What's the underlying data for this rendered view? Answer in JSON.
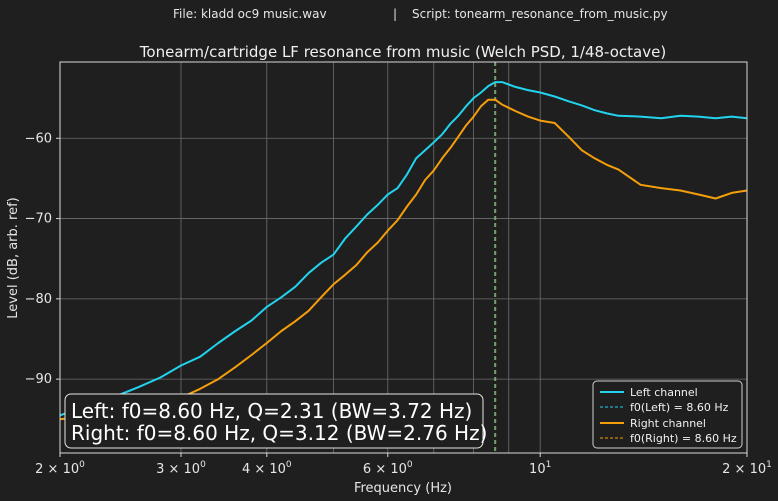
{
  "header": {
    "file_label": "File: kladd oc9 music.wav",
    "separator": "|",
    "script_label": "Script: tonearm_resonance_from_music.py"
  },
  "colors": {
    "background": "#1f1f1f",
    "plot_background": "#1f1f1f",
    "grid": "#6e6e6e",
    "left": "#22d3ee",
    "right": "#f59e0b",
    "text": "#e6e6e6"
  },
  "chart_data": {
    "type": "line",
    "title": "Tonearm/cartridge LF resonance from music (Welch PSD, 1/48-octave)",
    "xlabel": "Frequency (Hz)",
    "ylabel": "Level (dB, arb. ref)",
    "xscale": "log",
    "xlim": [
      2,
      20
    ],
    "ylim": [
      -99.2,
      -50.5
    ],
    "grid": true,
    "legend_position": "lower-right",
    "x_ticks": [
      {
        "value": 2,
        "base": "2 × 10",
        "exp": "0"
      },
      {
        "value": 3,
        "base": "3 × 10",
        "exp": "0"
      },
      {
        "value": 4,
        "base": "4 × 10",
        "exp": "0"
      },
      {
        "value": 6,
        "base": "6 × 10",
        "exp": "0"
      },
      {
        "value": 10,
        "base": "10",
        "exp": "1"
      },
      {
        "value": 20,
        "base": "2 × 10",
        "exp": "1"
      }
    ],
    "y_ticks": [
      {
        "value": -90,
        "label": "−90"
      },
      {
        "value": -80,
        "label": "−80"
      },
      {
        "value": -70,
        "label": "−70"
      },
      {
        "value": -60,
        "label": "−60"
      }
    ],
    "series": [
      {
        "name": "Left channel",
        "color": "#22d3ee",
        "x": [
          2.0,
          2.2,
          2.4,
          2.6,
          2.8,
          3.0,
          3.2,
          3.4,
          3.6,
          3.8,
          4.0,
          4.2,
          4.4,
          4.6,
          4.8,
          5.0,
          5.2,
          5.4,
          5.6,
          5.8,
          6.0,
          6.2,
          6.4,
          6.6,
          6.8,
          7.0,
          7.2,
          7.4,
          7.6,
          7.8,
          8.0,
          8.2,
          8.4,
          8.6,
          8.8,
          9.0,
          9.2,
          9.6,
          10.0,
          10.5,
          11.0,
          11.5,
          12.0,
          12.5,
          13.0,
          14.0,
          15.0,
          16.0,
          17.0,
          18.0,
          19.0,
          20.0
        ],
        "y": [
          -94.5,
          -93.3,
          -92.2,
          -91.0,
          -89.8,
          -88.3,
          -87.2,
          -85.5,
          -84.0,
          -82.7,
          -81.0,
          -79.8,
          -78.5,
          -76.8,
          -75.5,
          -74.5,
          -72.5,
          -71.0,
          -69.5,
          -68.3,
          -67.0,
          -66.2,
          -64.5,
          -62.5,
          -61.5,
          -60.5,
          -59.5,
          -58.2,
          -57.2,
          -56.0,
          -55.0,
          -54.3,
          -53.5,
          -53.0,
          -53.0,
          -53.3,
          -53.6,
          -54.0,
          -54.3,
          -54.8,
          -55.4,
          -55.9,
          -56.5,
          -56.9,
          -57.2,
          -57.3,
          -57.5,
          -57.2,
          -57.3,
          -57.5,
          -57.3,
          -57.5
        ]
      },
      {
        "name": "Right channel",
        "color": "#f59e0b",
        "x": [
          2.0,
          2.2,
          2.4,
          2.6,
          2.8,
          3.0,
          3.2,
          3.4,
          3.6,
          3.8,
          4.0,
          4.2,
          4.4,
          4.6,
          4.8,
          5.0,
          5.2,
          5.4,
          5.6,
          5.8,
          6.0,
          6.2,
          6.4,
          6.6,
          6.8,
          7.0,
          7.2,
          7.4,
          7.6,
          7.8,
          8.0,
          8.2,
          8.4,
          8.6,
          8.8,
          9.0,
          9.2,
          9.6,
          10.0,
          10.5,
          11.0,
          11.5,
          12.0,
          12.5,
          13.0,
          14.0,
          15.0,
          16.0,
          17.0,
          18.0,
          19.0,
          20.0
        ],
        "y": [
          -95.0,
          -94.6,
          -94.2,
          -93.8,
          -93.3,
          -92.3,
          -91.2,
          -90.0,
          -88.5,
          -87.0,
          -85.5,
          -84.0,
          -82.8,
          -81.5,
          -79.8,
          -78.2,
          -77.0,
          -75.8,
          -74.2,
          -73.0,
          -71.5,
          -70.2,
          -68.5,
          -67.0,
          -65.2,
          -64.0,
          -62.5,
          -61.2,
          -59.8,
          -58.4,
          -57.3,
          -56.0,
          -55.2,
          -55.2,
          -55.8,
          -56.2,
          -56.6,
          -57.3,
          -57.8,
          -58.1,
          -59.8,
          -61.5,
          -62.5,
          -63.3,
          -63.9,
          -65.8,
          -66.2,
          -66.5,
          -67.0,
          -67.5,
          -66.8,
          -66.5
        ]
      }
    ],
    "vlines": [
      {
        "name": "f0(Left) = 8.60 Hz",
        "x": 8.6,
        "color": "#22d3ee"
      },
      {
        "name": "f0(Right) = 8.60 Hz",
        "x": 8.6,
        "color": "#f59e0b"
      }
    ],
    "annotation": {
      "line1": "Left: f0=8.60 Hz, Q=2.31 (BW=3.72 Hz)",
      "line2": "Right: f0=8.60 Hz, Q=3.12 (BW=2.76 Hz)",
      "position": "lower-left"
    }
  }
}
